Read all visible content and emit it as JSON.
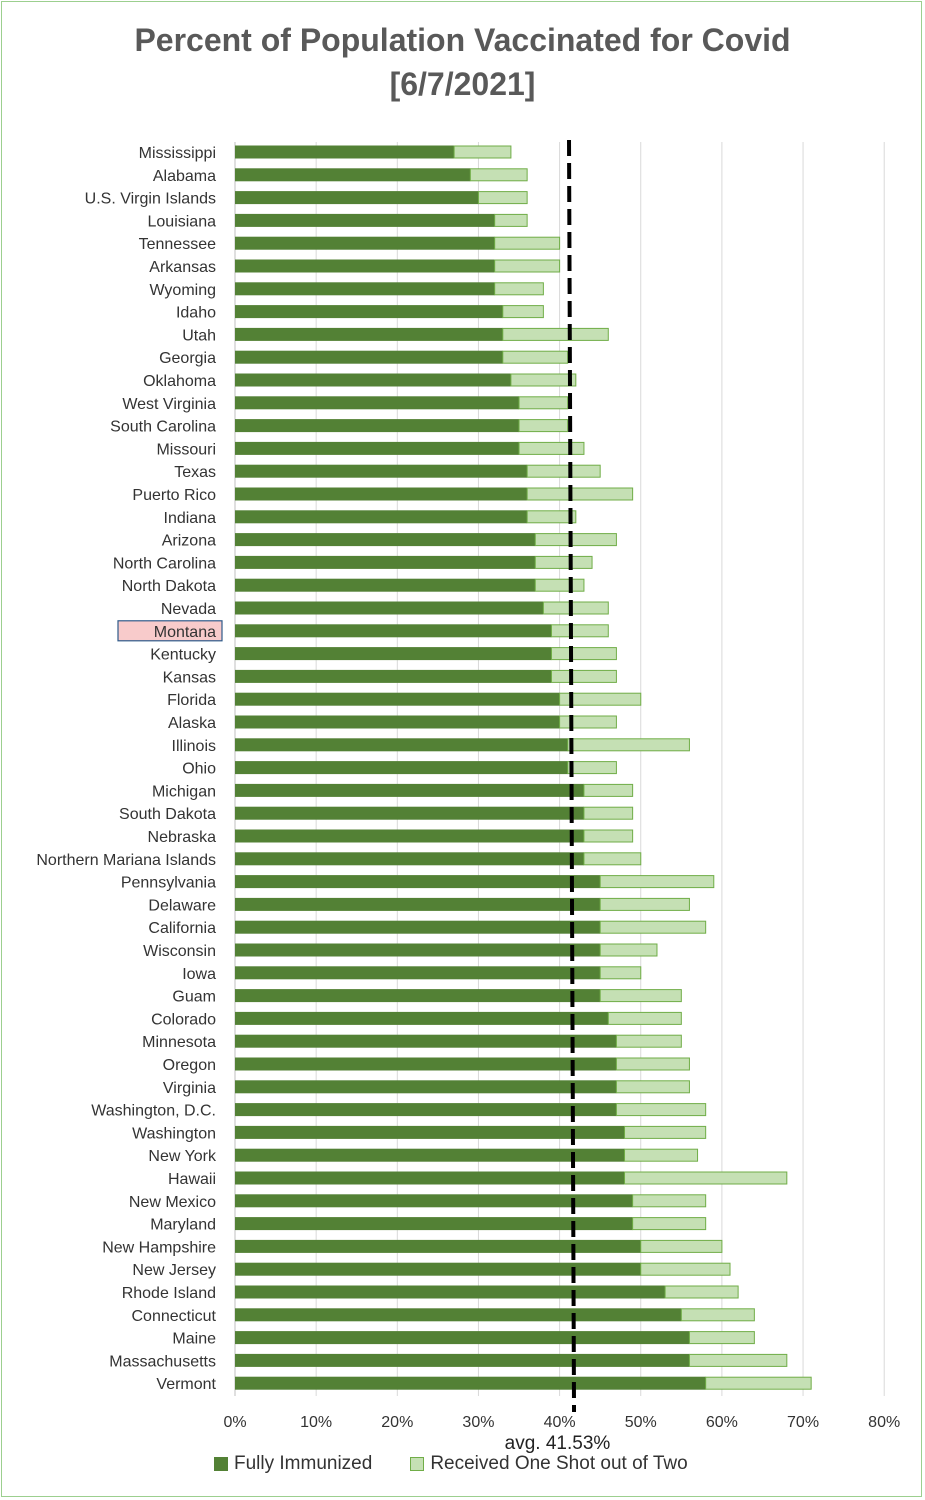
{
  "chart_data": {
    "type": "bar",
    "orientation": "horizontal",
    "stacked": true,
    "title_lines": [
      "Percent of Population Vaccinated for Covid",
      "[6/7/2021]"
    ],
    "categories": [
      "Mississippi",
      "Alabama",
      "U.S. Virgin Islands",
      "Louisiana",
      "Tennessee",
      "Arkansas",
      "Wyoming",
      "Idaho",
      "Utah",
      "Georgia",
      "Oklahoma",
      "West Virginia",
      "South Carolina",
      "Missouri",
      "Texas",
      "Puerto Rico",
      "Indiana",
      "Arizona",
      "North Carolina",
      "North Dakota",
      "Nevada",
      "Montana",
      "Kentucky",
      "Kansas",
      "Florida",
      "Alaska",
      "Illinois",
      "Ohio",
      "Michigan",
      "South Dakota",
      "Nebraska",
      "Northern Mariana Islands",
      "Pennsylvania",
      "Delaware",
      "California",
      "Wisconsin",
      "Iowa",
      "Guam",
      "Colorado",
      "Minnesota",
      "Oregon",
      "Virginia",
      "Washington, D.C.",
      "Washington",
      "New York",
      "Hawaii",
      "New Mexico",
      "Maryland",
      "New Hampshire",
      "New Jersey",
      "Rhode Island",
      "Connecticut",
      "Maine",
      "Massachusetts",
      "Vermont"
    ],
    "series": [
      {
        "name": "Fully Immunized",
        "color": "#538135",
        "values": [
          27,
          29,
          30,
          32,
          32,
          32,
          32,
          33,
          33,
          33,
          34,
          35,
          35,
          35,
          36,
          36,
          36,
          37,
          37,
          37,
          38,
          39,
          39,
          39,
          40,
          40,
          41,
          41,
          43,
          43,
          43,
          43,
          45,
          45,
          45,
          45,
          45,
          45,
          46,
          47,
          47,
          47,
          47,
          48,
          48,
          48,
          49,
          49,
          50,
          50,
          53,
          55,
          56,
          56,
          58
        ]
      },
      {
        "name": "Received One Shot out of Two",
        "color": "#c5e0b4",
        "edge": "#70ad47",
        "values": [
          7,
          7,
          6,
          4,
          8,
          8,
          6,
          5,
          13,
          8,
          8,
          6,
          6,
          8,
          9,
          13,
          6,
          10,
          7,
          6,
          8,
          7,
          8,
          8,
          10,
          7,
          15,
          6,
          6,
          6,
          6,
          7,
          14,
          11,
          13,
          7,
          5,
          10,
          9,
          8,
          9,
          9,
          11,
          10,
          9,
          20,
          9,
          9,
          10,
          11,
          9,
          9,
          8,
          12,
          13
        ]
      }
    ],
    "average": {
      "value": 41.53,
      "label": "avg. 41.53%"
    },
    "x_ticks": [
      "0%",
      "10%",
      "20%",
      "30%",
      "40%",
      "50%",
      "60%",
      "70%",
      "80%"
    ],
    "xlim": [
      0,
      80
    ],
    "grid": true,
    "legend_position": "bottom",
    "highlight": {
      "category": "Montana",
      "fill": "#f8cbcb",
      "border": "#2e5a8a"
    }
  }
}
